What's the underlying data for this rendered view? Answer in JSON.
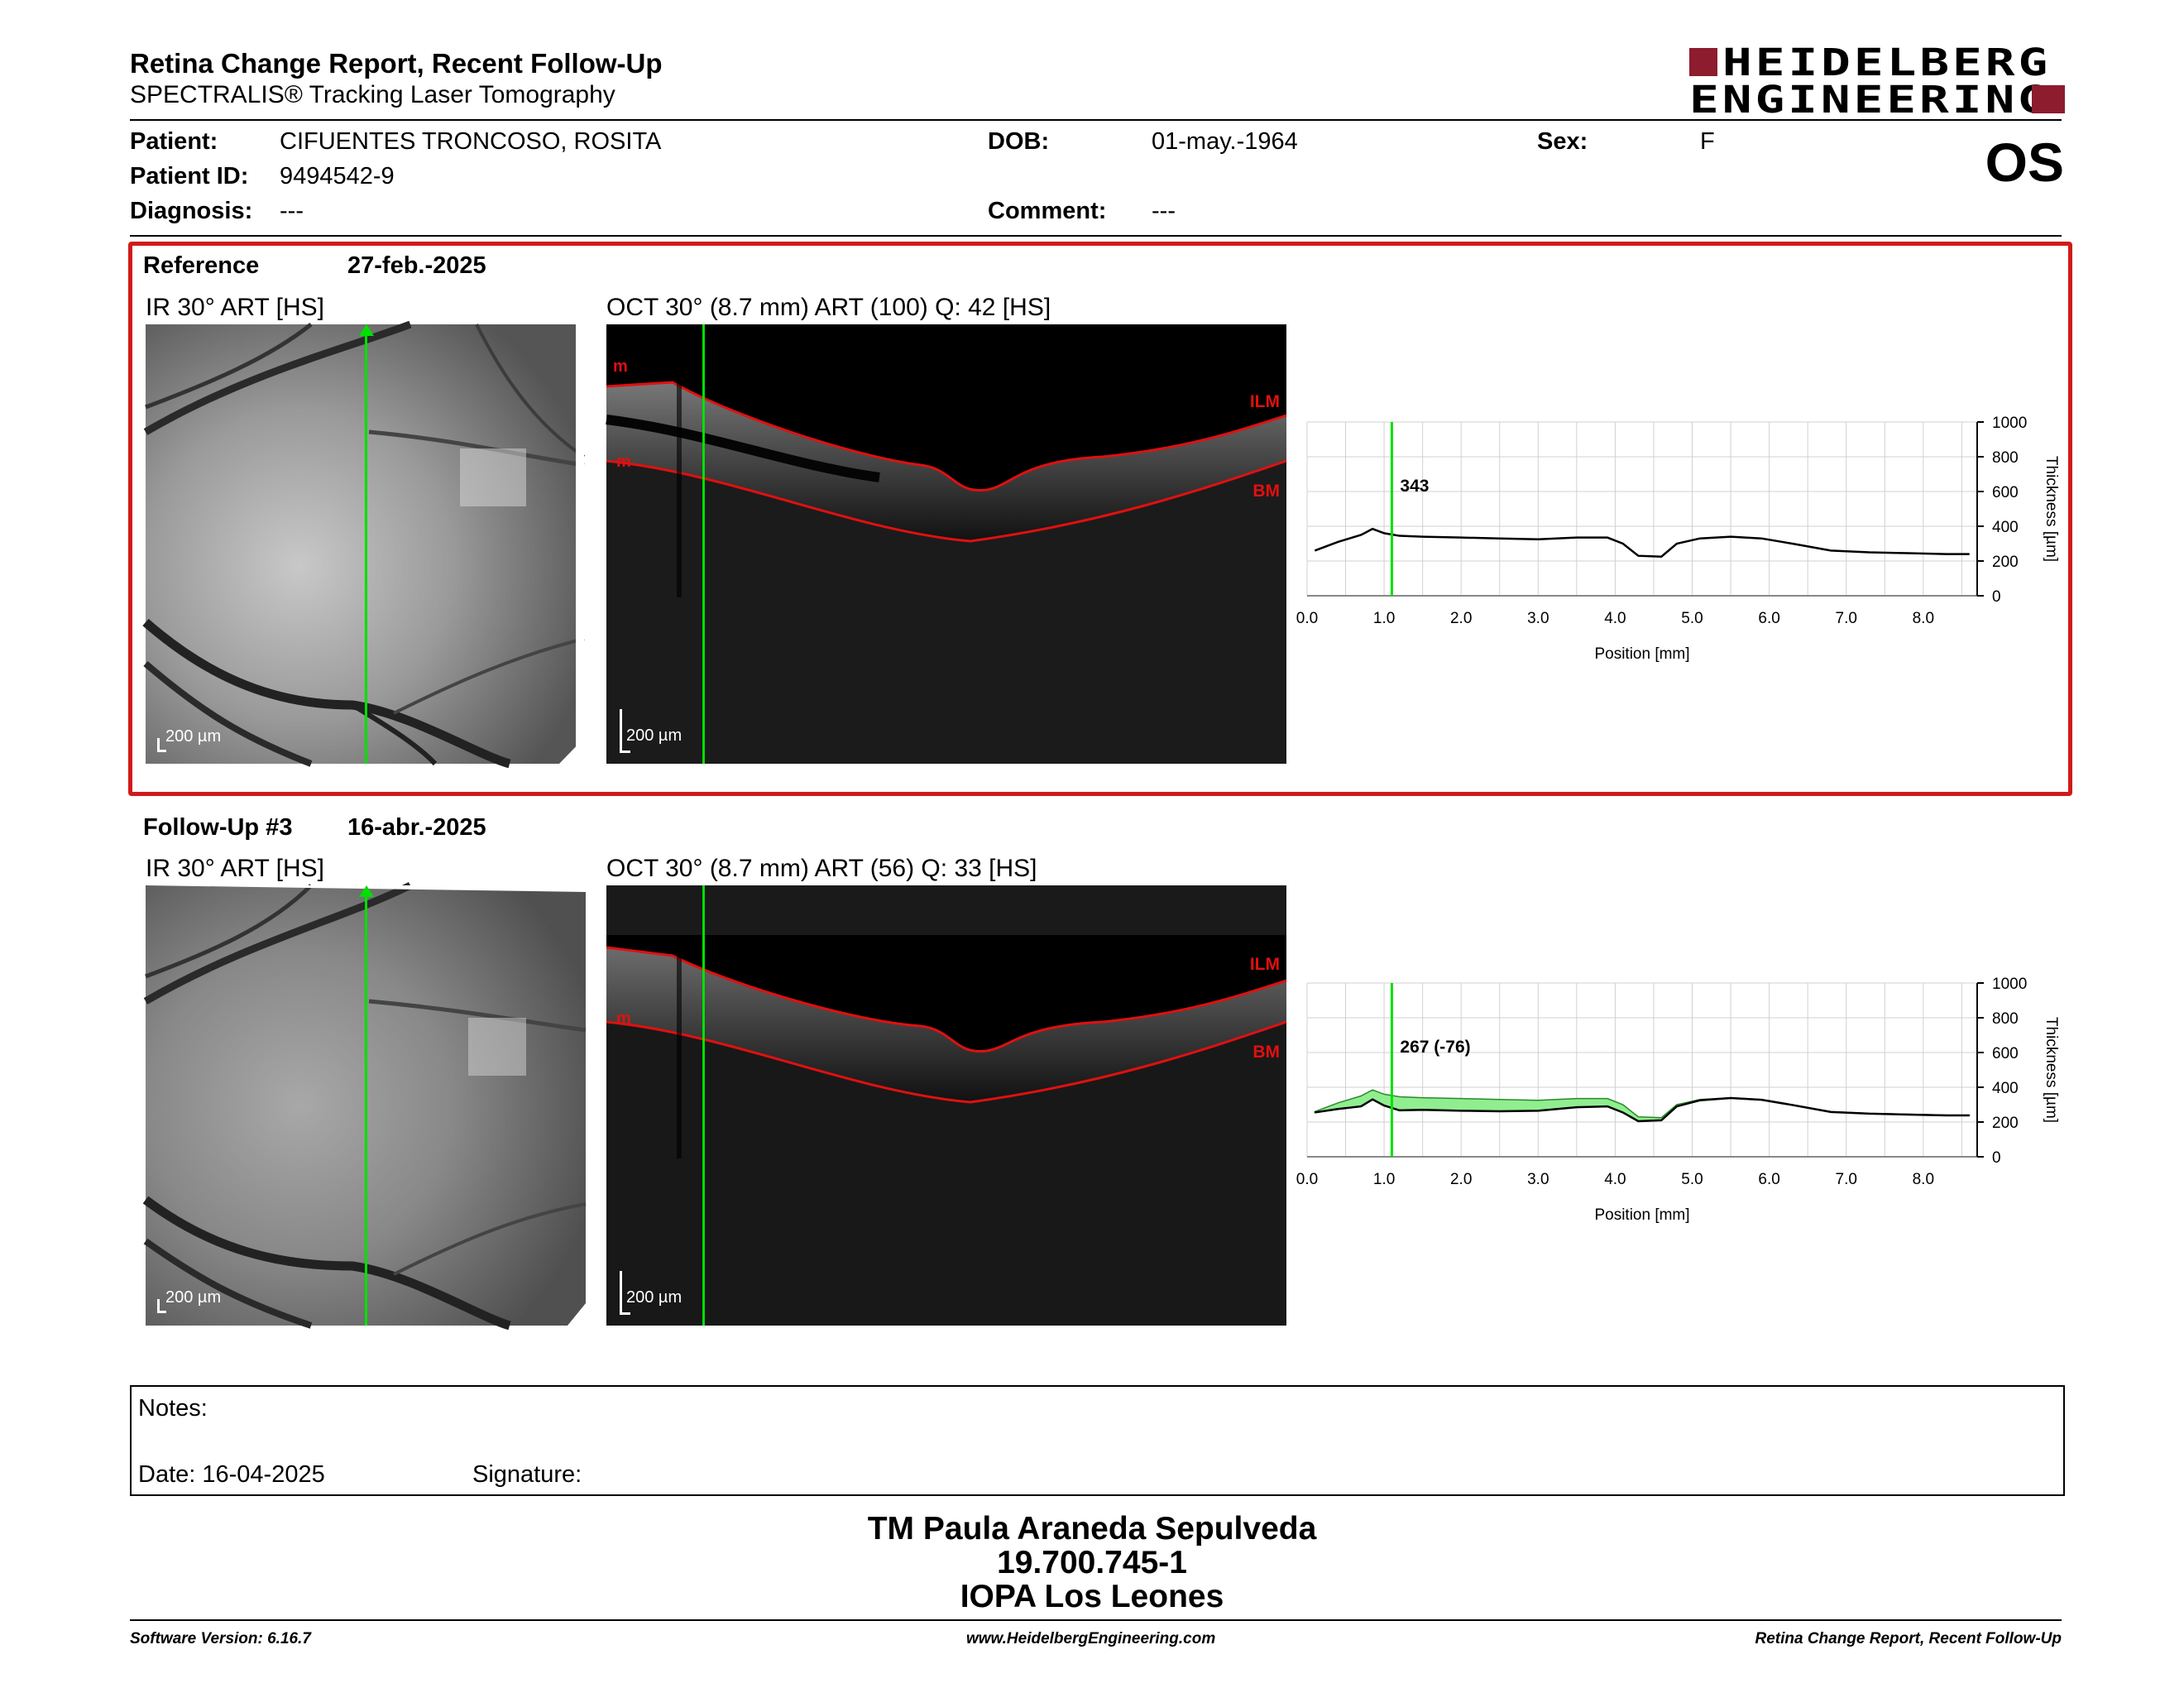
{
  "header": {
    "title": "Retina Change Report, Recent Follow-Up",
    "subtitle": "SPECTRALIS® Tracking Laser Tomography",
    "logo_line1": "HEIDELBERG",
    "logo_line2": "ENGINEERING",
    "eye": "OS"
  },
  "patient": {
    "patient_label": "Patient:",
    "patient_value": "CIFUENTES TRONCOSO, ROSITA",
    "id_label": "Patient ID:",
    "id_value": "9494542-9",
    "diagnosis_label": "Diagnosis:",
    "diagnosis_value": "---",
    "dob_label": "DOB:",
    "dob_value": "01-may.-1964",
    "comment_label": "Comment:",
    "comment_value": "---",
    "sex_label": "Sex:",
    "sex_value": "F"
  },
  "panels": [
    {
      "label": "Reference",
      "date": "27-feb.-2025",
      "ir_title": "IR 30° ART [HS]",
      "oct_title": "OCT 30° (8.7 mm) ART (100) Q: 42 [HS]",
      "scale_label": "200 µm",
      "layer_top": "ILM",
      "layer_bottom": "BM",
      "layer_marker": "m",
      "cursor_value": "343"
    },
    {
      "label": "Follow-Up #3",
      "date": "16-abr.-2025",
      "ir_title": "IR 30° ART [HS]",
      "oct_title": "OCT 30° (8.7 mm) ART (56) Q: 33 [HS]",
      "scale_label": "200 µm",
      "layer_top": "ILM",
      "layer_bottom": "BM",
      "layer_marker": "m",
      "cursor_value": "267 (-76)"
    }
  ],
  "chart_data": [
    {
      "type": "line",
      "xlabel": "Position [mm]",
      "ylabel": "Thickness [µm]",
      "xlim": [
        0,
        8.7
      ],
      "ylim": [
        0,
        1000
      ],
      "x_ticks": [
        "0.0",
        "1.0",
        "2.0",
        "3.0",
        "4.0",
        "5.0",
        "6.0",
        "7.0",
        "8.0"
      ],
      "y_ticks": [
        "0",
        "200",
        "400",
        "600",
        "800",
        "1000"
      ],
      "cursor_x": 1.1,
      "cursor_label": "343",
      "series": [
        {
          "x": [
            0.1,
            0.4,
            0.7,
            0.85,
            1.0,
            1.2,
            1.5,
            2.0,
            2.5,
            3.0,
            3.5,
            3.9,
            4.1,
            4.3,
            4.6,
            4.8,
            5.1,
            5.5,
            5.9,
            6.3,
            6.8,
            7.3,
            7.8,
            8.3,
            8.6
          ],
          "y": [
            260,
            310,
            350,
            385,
            360,
            345,
            340,
            335,
            330,
            325,
            335,
            335,
            300,
            230,
            225,
            300,
            330,
            340,
            330,
            300,
            260,
            250,
            245,
            240,
            240
          ]
        }
      ]
    },
    {
      "type": "area",
      "xlabel": "Position [mm]",
      "ylabel": "Thickness [µm]",
      "xlim": [
        0,
        8.7
      ],
      "ylim": [
        0,
        1000
      ],
      "x_ticks": [
        "0.0",
        "1.0",
        "2.0",
        "3.0",
        "4.0",
        "5.0",
        "6.0",
        "7.0",
        "8.0"
      ],
      "y_ticks": [
        "0",
        "200",
        "400",
        "600",
        "800",
        "1000"
      ],
      "cursor_x": 1.1,
      "cursor_label": "267 (-76)",
      "series": [
        {
          "x": [
            0.1,
            0.4,
            0.7,
            0.85,
            1.0,
            1.2,
            1.5,
            2.0,
            2.5,
            3.0,
            3.5,
            3.9,
            4.1,
            4.3,
            4.6,
            4.8,
            5.1,
            5.5,
            5.9,
            6.3,
            6.8,
            7.3,
            7.8,
            8.3,
            8.6
          ],
          "y": [
            260,
            310,
            350,
            385,
            360,
            345,
            340,
            335,
            330,
            325,
            335,
            335,
            300,
            230,
            225,
            300,
            330,
            340,
            330,
            300,
            260,
            250,
            245,
            240,
            240
          ]
        },
        {
          "x": [
            0.1,
            0.4,
            0.7,
            0.85,
            1.0,
            1.2,
            1.5,
            2.0,
            2.5,
            3.0,
            3.5,
            3.9,
            4.1,
            4.3,
            4.6,
            4.8,
            5.1,
            5.5,
            5.9,
            6.3,
            6.8,
            7.3,
            7.8,
            8.3,
            8.6
          ],
          "y": [
            255,
            275,
            290,
            330,
            295,
            267,
            270,
            265,
            262,
            265,
            285,
            290,
            255,
            205,
            210,
            290,
            325,
            338,
            328,
            298,
            258,
            248,
            243,
            238,
            238
          ]
        }
      ]
    }
  ],
  "notes": {
    "notes_label": "Notes:",
    "date_label": "Date: 16-04-2025",
    "signature_label": "Signature:"
  },
  "signature_block": {
    "line1": "TM Paula Araneda Sepulveda",
    "line2": "19.700.745-1",
    "line3": "IOPA Los Leones"
  },
  "footer": {
    "left": "Software Version: 6.16.7",
    "center": "www.HeidelbergEngineering.com",
    "right": "Retina Change Report, Recent Follow-Up"
  },
  "colors": {
    "accent_red": "#d11a1a",
    "logo_red": "#8c1c2e",
    "cursor_green": "#00e000",
    "diff_fill": "#90ee90"
  }
}
